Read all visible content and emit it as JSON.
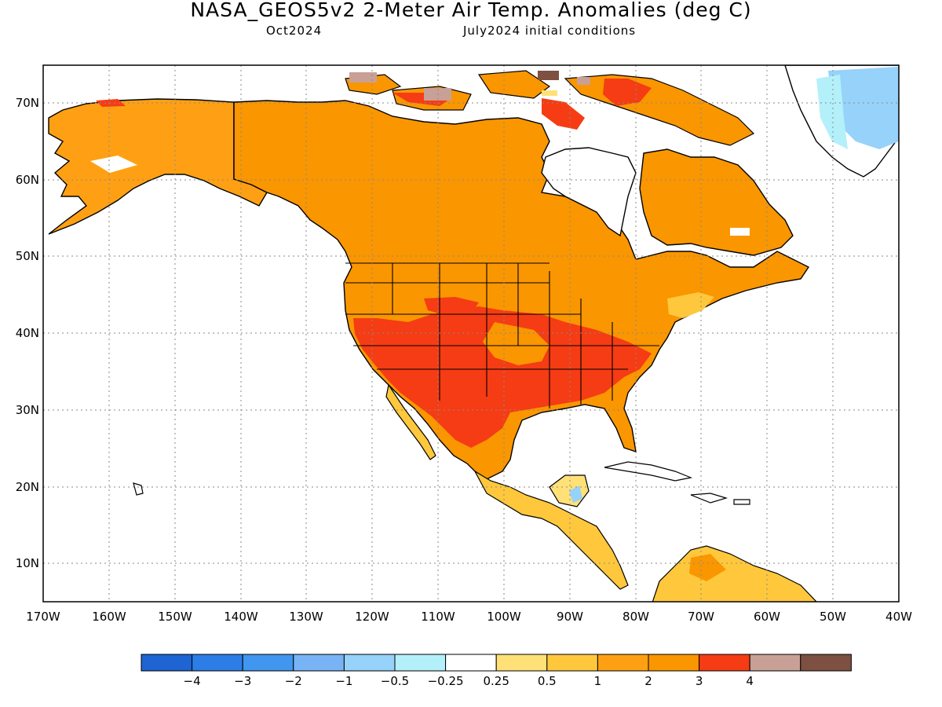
{
  "title": "NASA_GEOS5v2 2-Meter Air Temp. Anomalies (deg C)",
  "subtitle_left": "Oct2024",
  "subtitle_right": "July2024 initial conditions",
  "map": {
    "region": "North America",
    "lon_range": [
      -170,
      -40
    ],
    "lat_range": [
      5,
      75
    ],
    "lon_labels": [
      "170W",
      "160W",
      "150W",
      "140W",
      "130W",
      "120W",
      "110W",
      "100W",
      "90W",
      "80W",
      "70W",
      "60W",
      "50W",
      "40W"
    ],
    "lat_labels": [
      "10N",
      "20N",
      "30N",
      "40N",
      "50N",
      "60N",
      "70N"
    ],
    "gridlines": "dotted",
    "ocean_color": "#ffffff",
    "land_outline_color": "#000000"
  },
  "legend": {
    "colors": [
      "#1e64d2",
      "#2d7de6",
      "#4196f0",
      "#78b4f5",
      "#96d2fa",
      "#b4f0fa",
      "#ffffff",
      "#ffe178",
      "#ffc83c",
      "#ffa014",
      "#fa9600",
      "#f53c14",
      "#c8a096",
      "#7d5041"
    ],
    "labels": [
      "−4",
      "−3",
      "−2",
      "−1",
      "−0.5",
      "−0.25",
      "0.25",
      "0.5",
      "1",
      "2",
      "3",
      "4"
    ]
  }
}
